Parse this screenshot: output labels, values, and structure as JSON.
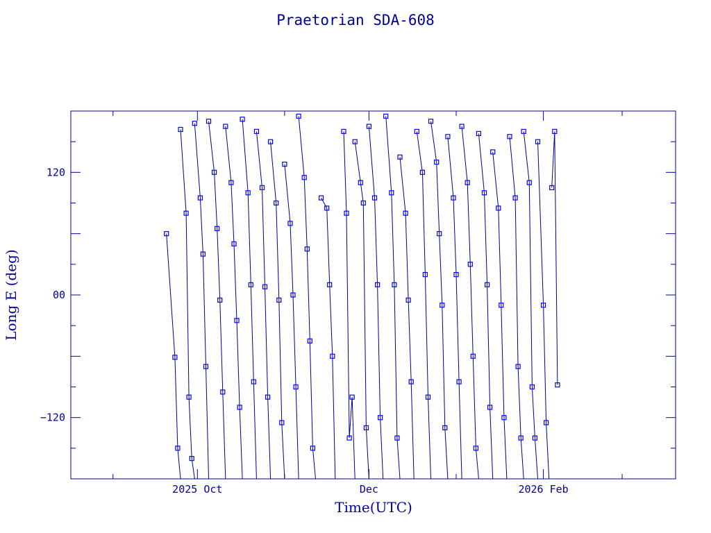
{
  "chart_data": {
    "type": "line",
    "title": "Praetorian SDA-608",
    "xlabel": "Time(UTC)",
    "ylabel": "Long E (deg)",
    "x_axis": {
      "type": "date",
      "range": [
        "2025-08-17",
        "2026-03-20"
      ],
      "tick_labels": [
        {
          "date": "2025-10-01",
          "label": "2025 Oct"
        },
        {
          "date": "2025-12-01",
          "label": "Dec"
        },
        {
          "date": "2026-02-01",
          "label": "2026 Feb"
        }
      ]
    },
    "y_axis": {
      "range": [
        -180,
        180
      ],
      "tick_labels": [
        {
          "value": 120,
          "label": "120"
        },
        {
          "value": 0,
          "label": "00"
        },
        {
          "value": -120,
          "label": "−120"
        }
      ]
    },
    "grid": false,
    "legend": "none",
    "colors": {
      "line": "#00008b",
      "marker": "#0000ff",
      "axes": "#0000a0"
    },
    "series": [
      {
        "marker": "square",
        "segments": [
          [
            [
              "2025-09-20",
              60
            ],
            [
              "2025-09-23",
              -61
            ],
            [
              "2025-09-24",
              -150
            ],
            [
              "2025-09-25",
              -180
            ]
          ],
          [
            [
              "2025-09-25",
              162
            ],
            [
              "2025-09-27",
              80
            ],
            [
              "2025-09-28",
              -100
            ],
            [
              "2025-09-29",
              -160
            ],
            [
              "2025-09-30",
              -180
            ]
          ],
          [
            [
              "2025-09-30",
              168
            ],
            [
              "2025-10-02",
              95
            ],
            [
              "2025-10-03",
              40
            ],
            [
              "2025-10-04",
              -70
            ],
            [
              "2025-10-05",
              -180
            ]
          ],
          [
            [
              "2025-10-05",
              170
            ],
            [
              "2025-10-07",
              120
            ],
            [
              "2025-10-08",
              65
            ],
            [
              "2025-10-09",
              -5
            ],
            [
              "2025-10-10",
              -95
            ],
            [
              "2025-10-11",
              -180
            ]
          ],
          [
            [
              "2025-10-11",
              165
            ],
            [
              "2025-10-13",
              110
            ],
            [
              "2025-10-14",
              50
            ],
            [
              "2025-10-15",
              -25
            ],
            [
              "2025-10-16",
              -110
            ],
            [
              "2025-10-17",
              -180
            ]
          ],
          [
            [
              "2025-10-17",
              172
            ],
            [
              "2025-10-19",
              100
            ],
            [
              "2025-10-20",
              10
            ],
            [
              "2025-10-21",
              -85
            ],
            [
              "2025-10-22",
              -180
            ]
          ],
          [
            [
              "2025-10-22",
              160
            ],
            [
              "2025-10-24",
              105
            ],
            [
              "2025-10-25",
              8
            ],
            [
              "2025-10-26",
              -100
            ],
            [
              "2025-10-27",
              -180
            ]
          ],
          [
            [
              "2025-10-27",
              150
            ],
            [
              "2025-10-29",
              90
            ],
            [
              "2025-10-30",
              -5
            ],
            [
              "2025-10-31",
              -125
            ],
            [
              "2025-11-01",
              -180
            ]
          ],
          [
            [
              "2025-11-01",
              128
            ],
            [
              "2025-11-03",
              70
            ],
            [
              "2025-11-04",
              0
            ],
            [
              "2025-11-05",
              -90
            ],
            [
              "2025-11-06",
              -180
            ]
          ],
          [
            [
              "2025-11-06",
              175
            ],
            [
              "2025-11-08",
              115
            ],
            [
              "2025-11-09",
              45
            ],
            [
              "2025-11-10",
              -45
            ],
            [
              "2025-11-11",
              -150
            ],
            [
              "2025-11-12",
              -180
            ]
          ],
          [
            [
              "2025-11-14",
              95
            ],
            [
              "2025-11-16",
              85
            ],
            [
              "2025-11-17",
              10
            ],
            [
              "2025-11-18",
              -60
            ],
            [
              "2025-11-19",
              -180
            ]
          ],
          [
            [
              "2025-11-22",
              160
            ],
            [
              "2025-11-23",
              80
            ],
            [
              "2025-11-24",
              -140
            ],
            [
              "2025-11-25",
              -100
            ],
            [
              "2025-11-26",
              -180
            ]
          ],
          [
            [
              "2025-11-26",
              150
            ],
            [
              "2025-11-28",
              110
            ],
            [
              "2025-11-29",
              90
            ],
            [
              "2025-11-30",
              -130
            ],
            [
              "2025-12-01",
              -180
            ]
          ],
          [
            [
              "2025-12-01",
              165
            ],
            [
              "2025-12-03",
              95
            ],
            [
              "2025-12-04",
              10
            ],
            [
              "2025-12-05",
              -120
            ],
            [
              "2025-12-06",
              -180
            ]
          ],
          [
            [
              "2025-12-07",
              175
            ],
            [
              "2025-12-09",
              100
            ],
            [
              "2025-12-10",
              10
            ],
            [
              "2025-12-11",
              -140
            ],
            [
              "2025-12-12",
              -180
            ]
          ],
          [
            [
              "2025-12-12",
              135
            ],
            [
              "2025-12-14",
              80
            ],
            [
              "2025-12-15",
              -5
            ],
            [
              "2025-12-16",
              -85
            ],
            [
              "2025-12-17",
              -180
            ]
          ],
          [
            [
              "2025-12-18",
              160
            ],
            [
              "2025-12-20",
              120
            ],
            [
              "2025-12-21",
              20
            ],
            [
              "2025-12-22",
              -100
            ],
            [
              "2025-12-23",
              -180
            ]
          ],
          [
            [
              "2025-12-23",
              170
            ],
            [
              "2025-12-25",
              130
            ],
            [
              "2025-12-26",
              60
            ],
            [
              "2025-12-27",
              -10
            ],
            [
              "2025-12-28",
              -130
            ],
            [
              "2025-12-29",
              -180
            ]
          ],
          [
            [
              "2025-12-29",
              155
            ],
            [
              "2025-12-31",
              95
            ],
            [
              "2026-01-01",
              20
            ],
            [
              "2026-01-02",
              -85
            ],
            [
              "2026-01-03",
              -180
            ]
          ],
          [
            [
              "2026-01-03",
              165
            ],
            [
              "2026-01-05",
              110
            ],
            [
              "2026-01-06",
              30
            ],
            [
              "2026-01-07",
              -60
            ],
            [
              "2026-01-08",
              -150
            ],
            [
              "2026-01-09",
              -180
            ]
          ],
          [
            [
              "2026-01-09",
              158
            ],
            [
              "2026-01-11",
              100
            ],
            [
              "2026-01-12",
              10
            ],
            [
              "2026-01-13",
              -110
            ],
            [
              "2026-01-14",
              -180
            ]
          ],
          [
            [
              "2026-01-14",
              140
            ],
            [
              "2026-01-16",
              85
            ],
            [
              "2026-01-17",
              -10
            ],
            [
              "2026-01-18",
              -120
            ],
            [
              "2026-01-19",
              -180
            ]
          ],
          [
            [
              "2026-01-20",
              155
            ],
            [
              "2026-01-22",
              95
            ],
            [
              "2026-01-23",
              -70
            ],
            [
              "2026-01-24",
              -140
            ],
            [
              "2026-01-25",
              -180
            ]
          ],
          [
            [
              "2026-01-25",
              160
            ],
            [
              "2026-01-27",
              110
            ],
            [
              "2026-01-28",
              -90
            ],
            [
              "2026-01-29",
              -140
            ],
            [
              "2026-01-30",
              -180
            ]
          ],
          [
            [
              "2026-01-30",
              150
            ],
            [
              "2026-02-01",
              -10
            ],
            [
              "2026-02-02",
              -125
            ],
            [
              "2026-02-03",
              -180
            ]
          ],
          [
            [
              "2026-02-04",
              105
            ],
            [
              "2026-02-05",
              160
            ],
            [
              "2026-02-06",
              -88
            ]
          ]
        ]
      }
    ]
  }
}
